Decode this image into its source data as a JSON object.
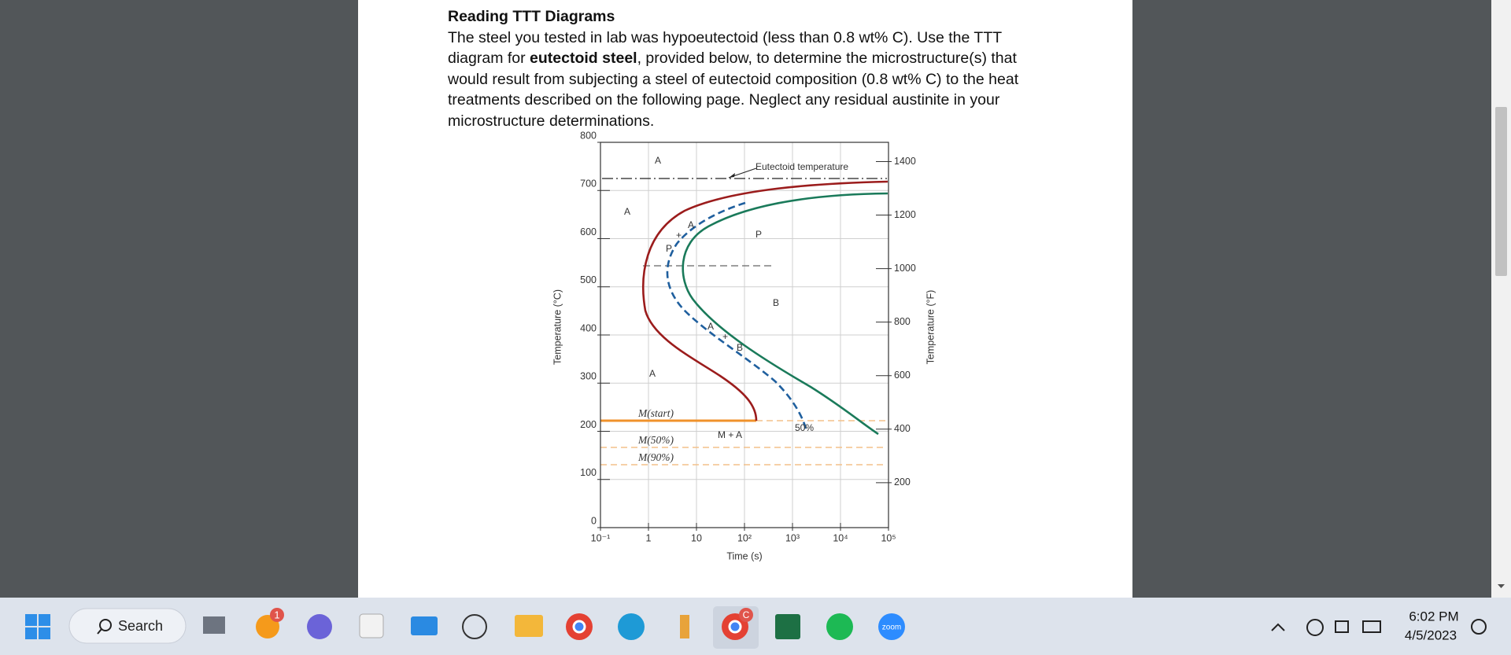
{
  "document": {
    "heading": "Reading TTT Diagrams",
    "line_1": "The steel you tested in lab was hypoeutectoid (less than 0.8 wt% C). Use the TTT",
    "line_2": {
      "before": "diagram for ",
      "bold": "eutectoid steel",
      "after": ", provided below, to determine the microstructure(s) that"
    },
    "line_3": "would result from subjecting a steel of eutectoid composition (0.8 wt% C) to the heat",
    "line_4": "treatments described on the following page. Neglect any residual austinite in your",
    "line_5": "microstructure determinations."
  },
  "figure": {
    "y_label": "Temperature (°C)",
    "y2_label": "Temperature (°F)",
    "x_label": "Time (s)",
    "xscale": "log",
    "xlim": [
      0.1,
      100000
    ],
    "ylim": [
      0,
      800
    ],
    "y2lim": [
      32,
      1472
    ],
    "xticks": [
      {
        "value": 0.1,
        "label": "10⁻¹"
      },
      1,
      10,
      {
        "value": 100,
        "label": "10²"
      },
      {
        "value": 1000,
        "label": "10³"
      },
      {
        "value": 10000,
        "label": "10⁴"
      },
      {
        "value": 100000,
        "label": "10⁵"
      }
    ],
    "yticks": [
      0,
      100,
      200,
      300,
      400,
      500,
      600,
      700,
      800
    ],
    "y2ticks": [
      200,
      400,
      600,
      800,
      1000,
      1200,
      1400
    ],
    "grid": true,
    "labels": [
      "Eutectoid temperature",
      "A",
      "A",
      "P",
      "B",
      "A",
      "M(start)",
      "M(50%)",
      "M(90%)",
      "M + A",
      "50%",
      "P",
      "+",
      "A",
      "A",
      "+",
      "B"
    ]
  },
  "taskbar": {
    "search": "Search",
    "badge": "1",
    "chrome_badge": "C",
    "zoom": "zoom",
    "time": "6:02 PM",
    "date": "4/5/2023"
  }
}
